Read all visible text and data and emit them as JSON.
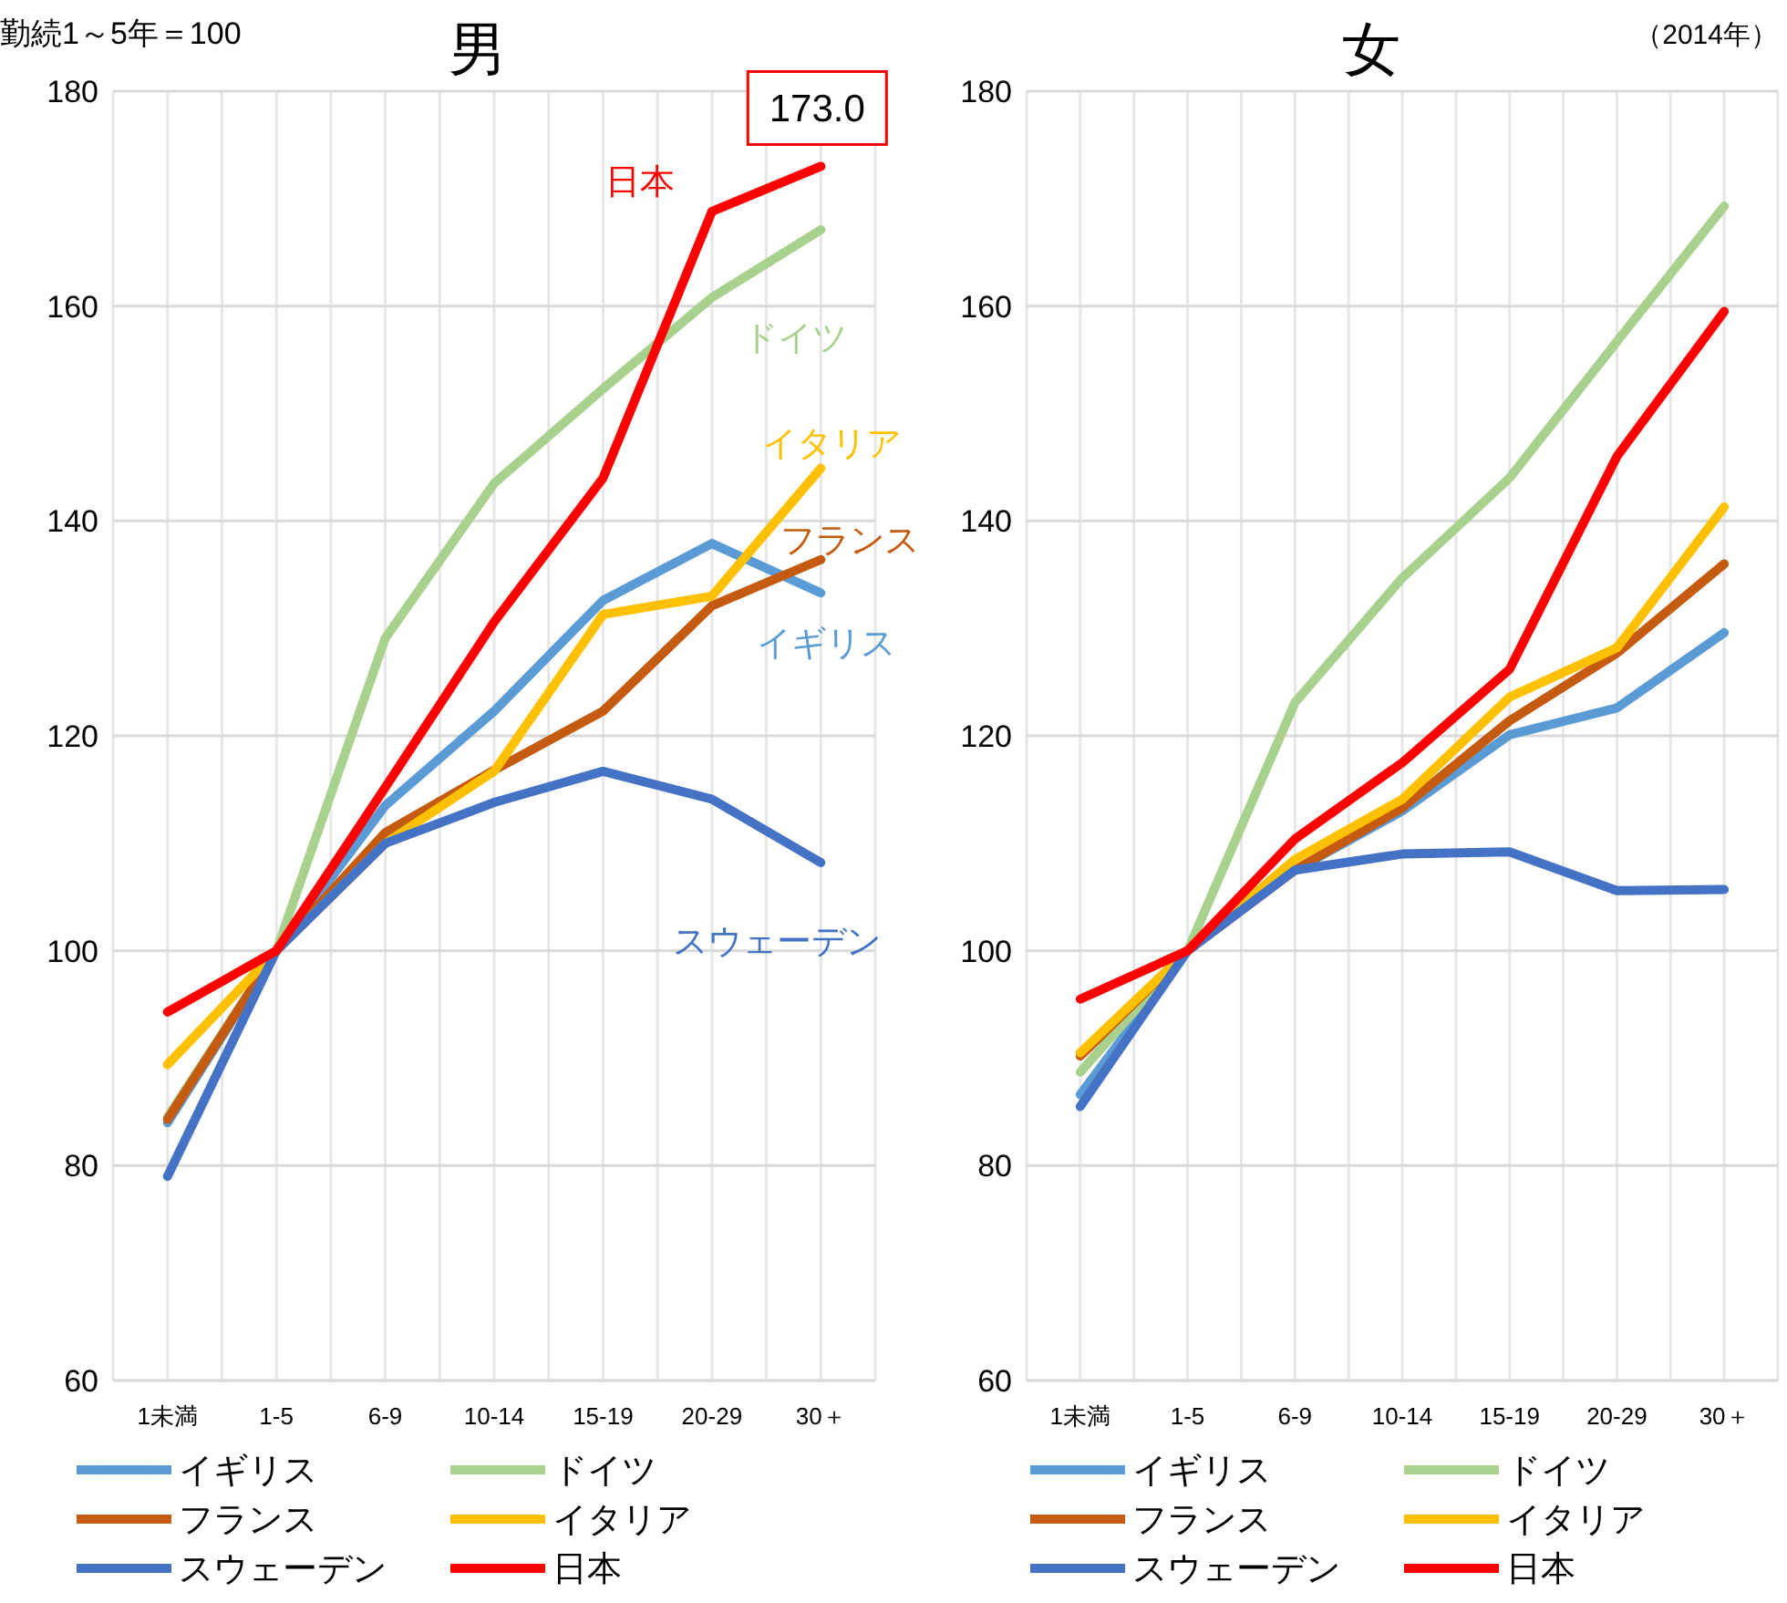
{
  "chart_data": [
    {
      "type": "line",
      "title": "男",
      "annotations": [
        "勤続1～5年＝100",
        {
          "text": "173.0",
          "x": "30＋",
          "y": 173.0
        }
      ],
      "categories": [
        "1未満",
        "1-5",
        "6-9",
        "10-14",
        "15-19",
        "20-29",
        "30＋"
      ],
      "ylim": [
        60,
        180
      ],
      "yticks": [
        60,
        80,
        100,
        120,
        140,
        160,
        180
      ],
      "grid": true,
      "legend": "bottom",
      "marker": "none",
      "line_style": "solid",
      "series": [
        {
          "name": "イギリス",
          "color": "#5b9bd5",
          "values": [
            84,
            100,
            113.5,
            122.3,
            132.6,
            137.9,
            133.3
          ]
        },
        {
          "name": "ドイツ",
          "color": "#a9d18e",
          "values": [
            84.5,
            100,
            129.1,
            143.5,
            152.3,
            160.8,
            167.1
          ]
        },
        {
          "name": "フランス",
          "color": "#c55a11",
          "values": [
            84.3,
            100,
            111,
            116.8,
            122.3,
            132.1,
            136.4
          ]
        },
        {
          "name": "イタリア",
          "color": "#ffc000",
          "values": [
            89.4,
            100,
            110,
            116.7,
            131.3,
            133,
            144.9
          ]
        },
        {
          "name": "スウェーデン",
          "color": "#4472c4",
          "values": [
            79,
            100,
            110,
            113.8,
            116.7,
            114.1,
            108.2
          ]
        },
        {
          "name": "日本",
          "color": "#ff0000",
          "values": [
            94.3,
            100,
            115.2,
            130.6,
            144,
            168.8,
            173.0
          ]
        }
      ]
    },
    {
      "type": "line",
      "title": "女",
      "annotations": [
        "（2014年）"
      ],
      "categories": [
        "1未満",
        "1-5",
        "6-9",
        "10-14",
        "15-19",
        "20-29",
        "30＋"
      ],
      "ylim": [
        60,
        180
      ],
      "yticks": [
        60,
        80,
        100,
        120,
        140,
        160,
        180
      ],
      "grid": true,
      "legend": "bottom",
      "marker": "none",
      "line_style": "solid",
      "series": [
        {
          "name": "イギリス",
          "color": "#5b9bd5",
          "values": [
            86.6,
            100,
            107.5,
            113,
            120.1,
            122.6,
            129.6
          ]
        },
        {
          "name": "ドイツ",
          "color": "#a9d18e",
          "values": [
            88.7,
            100,
            123.1,
            134.7,
            144,
            156.7,
            169.3
          ]
        },
        {
          "name": "フランス",
          "color": "#c55a11",
          "values": [
            90.2,
            100,
            107.5,
            113.3,
            121.4,
            127.7,
            136
          ]
        },
        {
          "name": "イタリア",
          "color": "#ffc000",
          "values": [
            90.5,
            100,
            108.5,
            114.1,
            123.6,
            128.2,
            141.3
          ]
        },
        {
          "name": "スウェーデン",
          "color": "#4472c4",
          "values": [
            85.5,
            100,
            107.5,
            109,
            109.2,
            105.6,
            105.7
          ]
        },
        {
          "name": "日本",
          "color": "#ff0000",
          "values": [
            95.5,
            100,
            110.4,
            117.5,
            126.2,
            146,
            159.5
          ]
        }
      ]
    }
  ]
}
